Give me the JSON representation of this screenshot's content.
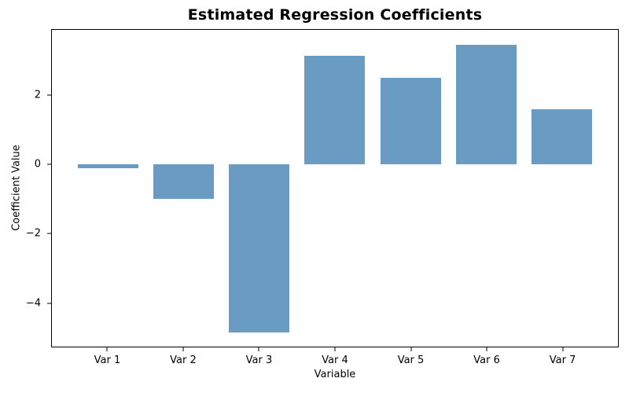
{
  "chart_data": {
    "type": "bar",
    "title": "Estimated Regression Coefficients",
    "xlabel": "Variable",
    "ylabel": "Coefficient Value",
    "categories": [
      "Var 1",
      "Var 2",
      "Var 3",
      "Var 4",
      "Var 5",
      "Var 6",
      "Var 7"
    ],
    "values": [
      -0.1,
      -1.0,
      -4.85,
      3.15,
      2.5,
      3.45,
      1.6
    ],
    "yticks": [
      2,
      0,
      -2,
      -4
    ],
    "ylim": [
      -5.27,
      3.89
    ],
    "xlim": [
      -0.74,
      6.74
    ],
    "bar_width": 0.8,
    "bar_color": "#6a9bc3",
    "spine_color": "#000000",
    "text_color": "#000000",
    "background_color": "#ffffff",
    "grid": false,
    "legend": "none"
  }
}
